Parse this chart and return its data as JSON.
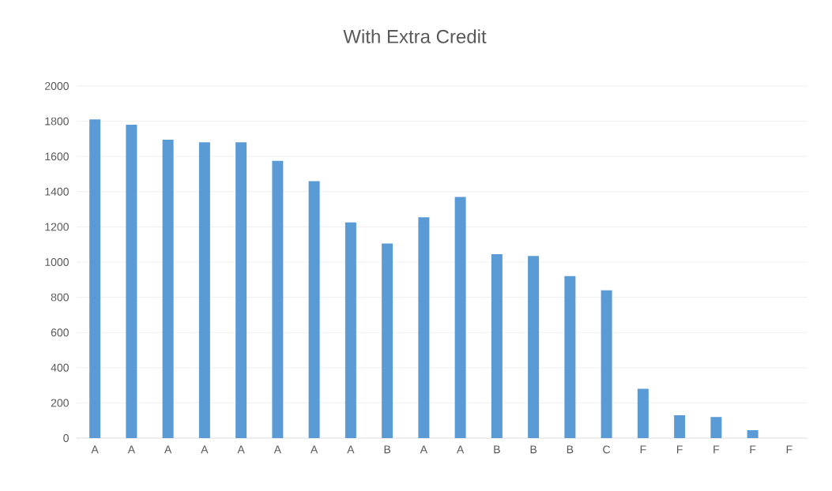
{
  "chart_data": {
    "type": "bar",
    "title": "With Extra Credit",
    "categories": [
      "A",
      "A",
      "A",
      "A",
      "A",
      "A",
      "A",
      "A",
      "B",
      "A",
      "A",
      "B",
      "B",
      "B",
      "C",
      "F",
      "F",
      "F",
      "F",
      "F"
    ],
    "values": [
      1810,
      1780,
      1695,
      1680,
      1680,
      1575,
      1460,
      1225,
      1105,
      1255,
      1370,
      1045,
      1035,
      920,
      840,
      280,
      130,
      120,
      45,
      0
    ],
    "color": "#5b9bd5",
    "ylim": [
      0,
      2000
    ],
    "yticks": [
      0,
      200,
      400,
      600,
      800,
      1000,
      1200,
      1400,
      1600,
      1800,
      2000
    ],
    "grid": "y"
  }
}
